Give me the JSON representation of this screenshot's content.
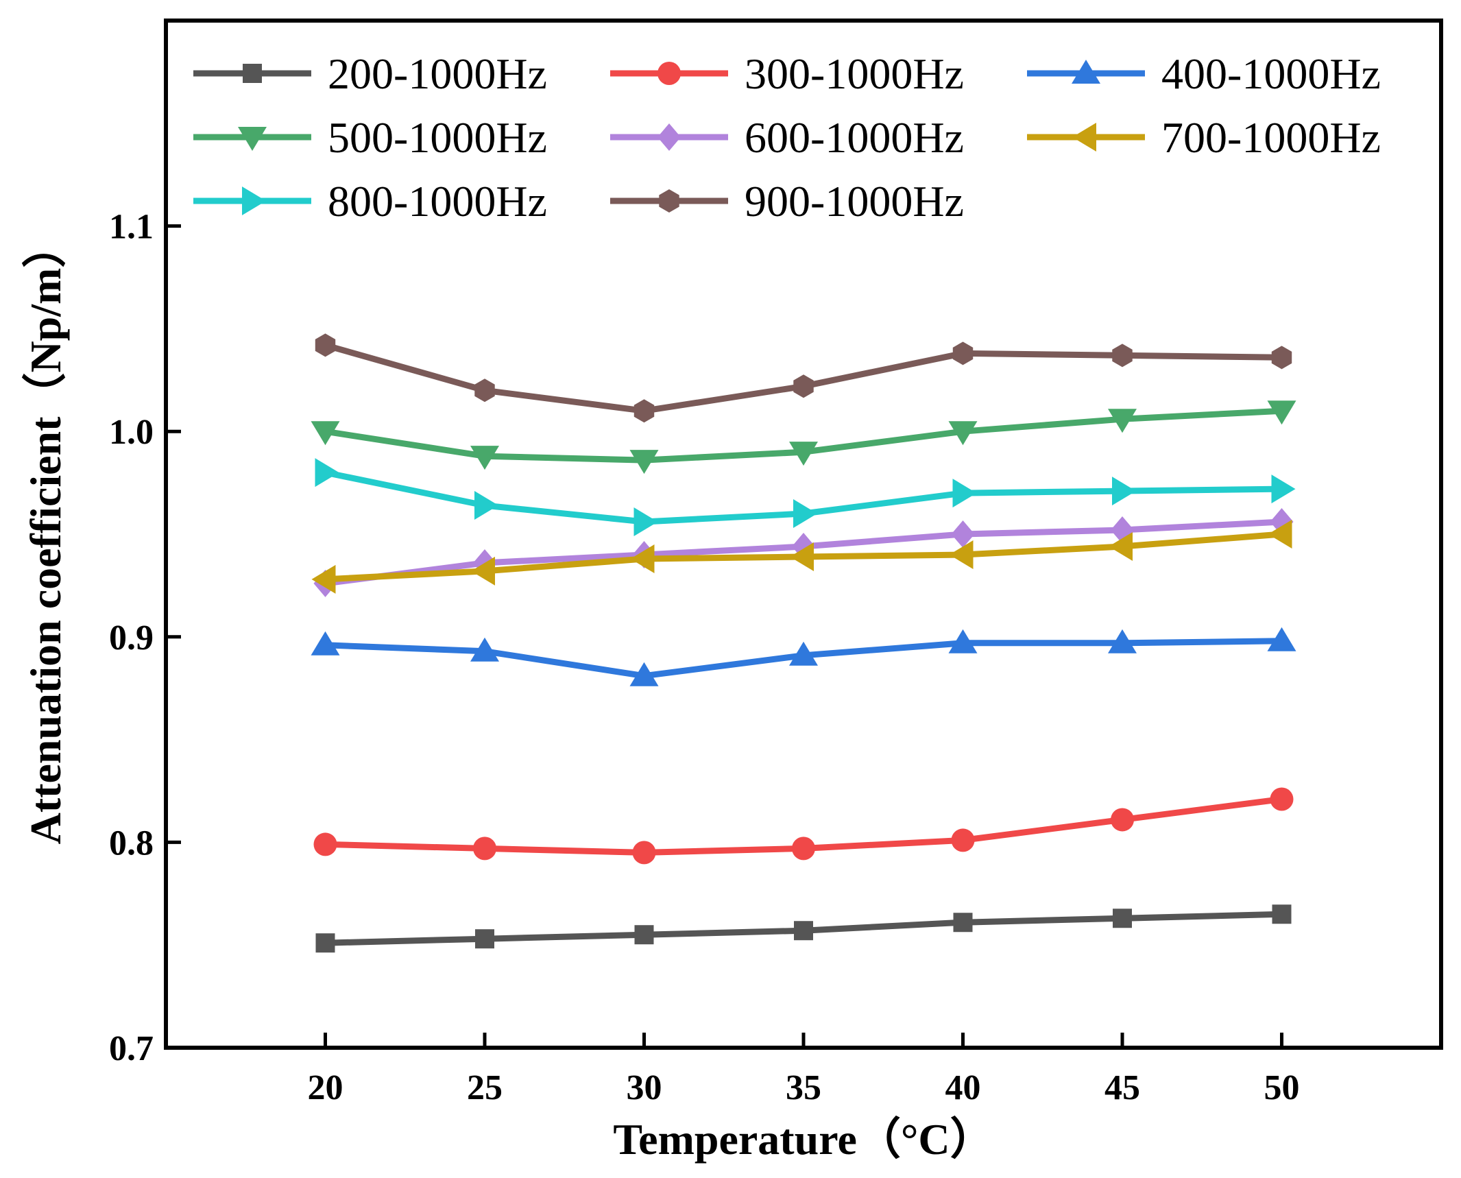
{
  "chart_data": {
    "type": "line",
    "title": "",
    "xlabel": "Temperature（°C）",
    "ylabel": "Attenuation coefficient（Np/m）",
    "x": [
      20,
      25,
      30,
      35,
      40,
      45,
      50
    ],
    "x_tick_labels": [
      "20",
      "25",
      "30",
      "35",
      "40",
      "45",
      "50"
    ],
    "xlim": [
      15,
      55
    ],
    "ylim": [
      0.7,
      1.2
    ],
    "y_ticks": [
      0.7,
      0.8,
      0.9,
      1.0,
      1.1
    ],
    "y_tick_labels": [
      "0.7",
      "0.8",
      "0.9",
      "1.0",
      "1.1"
    ],
    "grid": false,
    "legend_position": "top",
    "series": [
      {
        "name": "200-1000Hz",
        "color": "#555555",
        "marker": "square",
        "values": [
          0.751,
          0.753,
          0.755,
          0.757,
          0.761,
          0.763,
          0.765
        ]
      },
      {
        "name": "300-1000Hz",
        "color": "#f04848",
        "marker": "circle",
        "values": [
          0.799,
          0.797,
          0.795,
          0.797,
          0.801,
          0.811,
          0.821
        ]
      },
      {
        "name": "400-1000Hz",
        "color": "#2f78dc",
        "marker": "triangle-up",
        "values": [
          0.896,
          0.893,
          0.881,
          0.891,
          0.897,
          0.897,
          0.898
        ]
      },
      {
        "name": "500-1000Hz",
        "color": "#48a86a",
        "marker": "triangle-down",
        "values": [
          1.0,
          0.988,
          0.986,
          0.99,
          1.0,
          1.006,
          1.01
        ]
      },
      {
        "name": "600-1000Hz",
        "color": "#b183dc",
        "marker": "diamond",
        "values": [
          0.926,
          0.936,
          0.94,
          0.944,
          0.95,
          0.952,
          0.956
        ]
      },
      {
        "name": "700-1000Hz",
        "color": "#c8a010",
        "marker": "triangle-left",
        "values": [
          0.928,
          0.932,
          0.938,
          0.939,
          0.94,
          0.944,
          0.95
        ]
      },
      {
        "name": "800-1000Hz",
        "color": "#22cccc",
        "marker": "triangle-right",
        "values": [
          0.98,
          0.964,
          0.956,
          0.96,
          0.97,
          0.971,
          0.972
        ]
      },
      {
        "name": "900-1000Hz",
        "color": "#7a5a58",
        "marker": "hexagon",
        "values": [
          1.042,
          1.02,
          1.01,
          1.022,
          1.038,
          1.037,
          1.036
        ]
      }
    ]
  }
}
